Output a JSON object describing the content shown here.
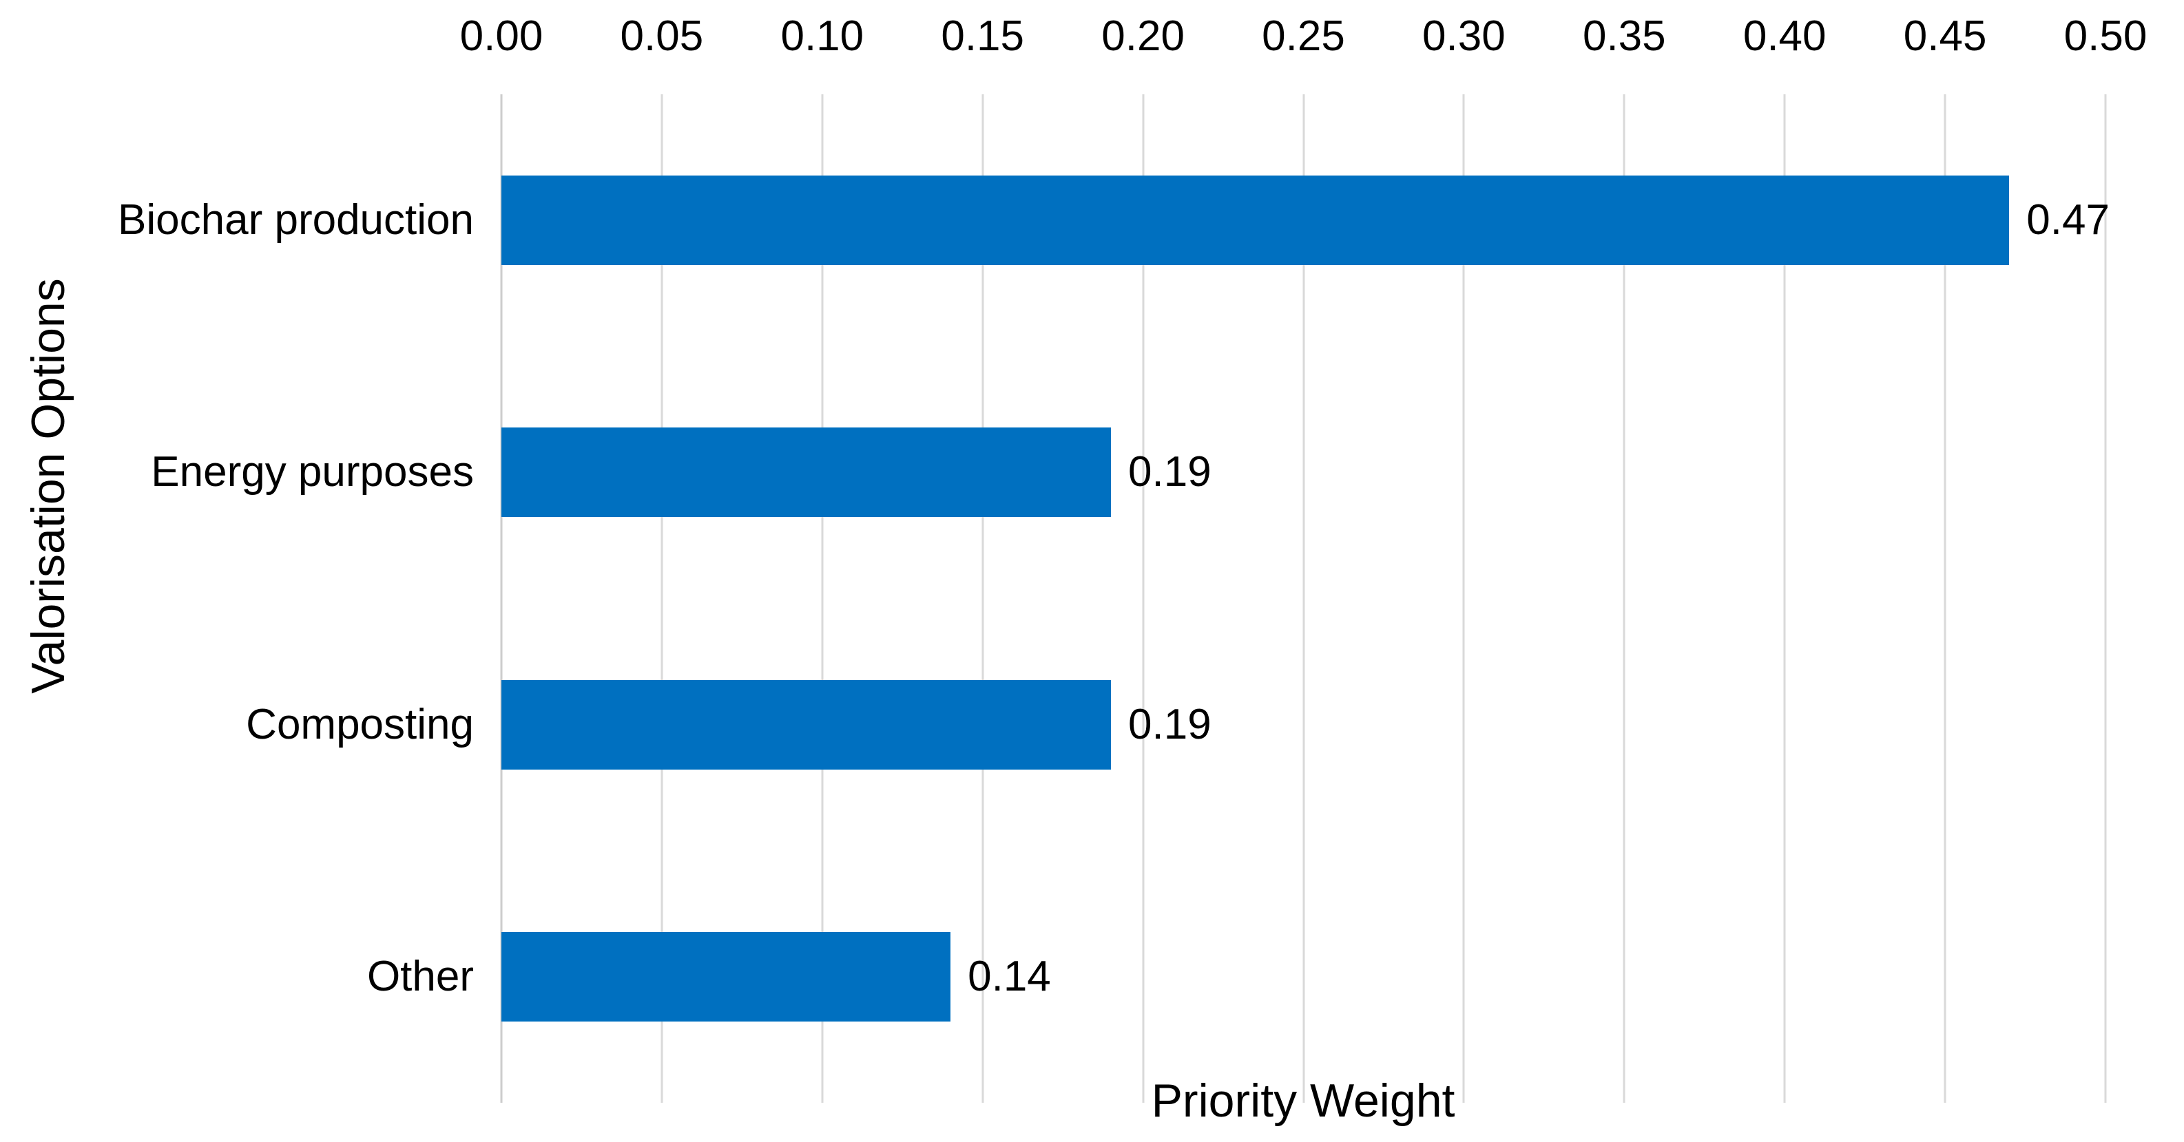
{
  "chart_data": {
    "type": "bar",
    "orientation": "horizontal",
    "title": "",
    "xlabel": "Priority Weight",
    "ylabel": "Valorisation Options",
    "categories": [
      "Biochar production",
      "Energy purposes",
      "Composting",
      "Other"
    ],
    "values": [
      0.47,
      0.19,
      0.19,
      0.14
    ],
    "value_labels": [
      "0.47",
      "0.19",
      "0.19",
      "0.14"
    ],
    "xlim": [
      0,
      0.5
    ],
    "x_ticks": [
      "0.00",
      "0.05",
      "0.10",
      "0.15",
      "0.20",
      "0.25",
      "0.30",
      "0.35",
      "0.40",
      "0.45",
      "0.50"
    ],
    "grid": "vertical-only",
    "legend_position": "none",
    "colors": {
      "bar": "#0070C0",
      "gridline": "#D9D9D9",
      "axis_line": "#CDCDCD",
      "text": "#000000",
      "background": "#FFFFFF"
    }
  }
}
